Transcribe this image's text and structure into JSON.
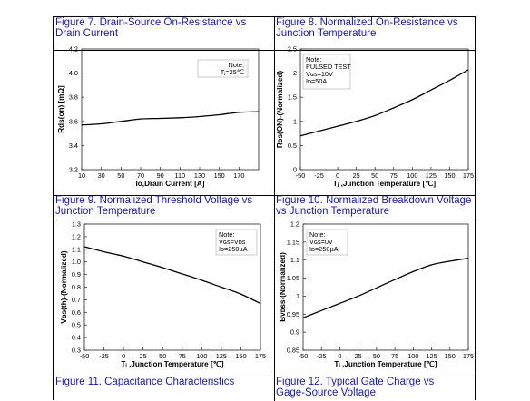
{
  "captions": {
    "fig7": "Figure 7. Drain-Source On-Resistance vs\nDrain Current",
    "fig8": "Figure 8. Normalized On-Resistance vs\nJunction Temperature",
    "fig9": "Figure 9. Normalized Threshold Voltage vs\nJunction Temperature",
    "fig10": "Figure 10. Normalized Breakdown Voltage\nvs Junction Temperature",
    "fig11": "Figure 11. Capacitance Characteristics",
    "fig12": "Figure 12. Typical Gate Charge vs\nGage-Source Voltage"
  },
  "chart_data": [
    {
      "type": "line",
      "figure": "Figure 7",
      "xlabel": "Io,Drain Current [A]",
      "ylabel": "Rds(on) [mΩ]",
      "xlim": [
        10,
        190
      ],
      "ylim": [
        3.2,
        4.2
      ],
      "xticks": [
        10,
        30,
        50,
        70,
        90,
        110,
        130,
        150,
        170
      ],
      "yticks": [
        3.2,
        3.4,
        3.6,
        3.8,
        4.0,
        4.2
      ],
      "ytick_labels": [
        "3.2",
        "3.4",
        "3.6",
        "3.8",
        "4.0",
        "4.2"
      ],
      "note": [
        "Note:",
        "Tⱼ=25℃"
      ],
      "x": [
        10,
        30,
        50,
        70,
        90,
        110,
        130,
        150,
        170,
        190
      ],
      "y": [
        3.57,
        3.58,
        3.6,
        3.62,
        3.625,
        3.63,
        3.64,
        3.655,
        3.675,
        3.68
      ]
    },
    {
      "type": "line",
      "figure": "Figure 8",
      "xlabel": "Tⱼ ,Junction Temperature [℃]",
      "ylabel": "Rᴅs(ON)-(Normalized)",
      "xlim": [
        -50,
        175
      ],
      "ylim": [
        0,
        2.5
      ],
      "xticks": [
        -50,
        -25,
        0,
        25,
        50,
        75,
        100,
        125,
        150,
        175
      ],
      "yticks": [
        0,
        0.5,
        1,
        1.5,
        2,
        2.5
      ],
      "ytick_labels": [
        "0",
        "0.5",
        "1",
        "1.5",
        "2",
        "2.5"
      ],
      "note": [
        "Note:",
        "PULSED TEST",
        "Vɢs=10V",
        "Iᴅ=50A"
      ],
      "x": [
        -50,
        -25,
        0,
        25,
        50,
        75,
        100,
        125,
        150,
        175
      ],
      "y": [
        0.7,
        0.8,
        0.9,
        1.0,
        1.12,
        1.28,
        1.45,
        1.65,
        1.85,
        2.07
      ]
    },
    {
      "type": "line",
      "figure": "Figure 9",
      "xlabel": "Tⱼ ,Junction Temperature [℃]",
      "ylabel": "Vɢs(th)-(Normalized)",
      "xlim": [
        -50,
        175
      ],
      "ylim": [
        0.3,
        1.3
      ],
      "xticks": [
        -50,
        -25,
        0,
        25,
        50,
        75,
        100,
        125,
        150,
        175
      ],
      "yticks": [
        0.3,
        0.4,
        0.5,
        0.6,
        0.7,
        0.8,
        0.9,
        1.0,
        1.1,
        1.2,
        1.3
      ],
      "ytick_labels": [
        "0.3",
        "0.4",
        "0.5",
        "0.6",
        "0.7",
        "0.8",
        "0.9",
        "1.0",
        "1.1",
        "1.2",
        "1.3"
      ],
      "note": [
        "Note:",
        "Vɢs=Vᴅs",
        "Iᴅ=250µA"
      ],
      "x": [
        -50,
        -25,
        0,
        25,
        50,
        75,
        100,
        125,
        150,
        175
      ],
      "y": [
        1.12,
        1.08,
        1.045,
        1.0,
        0.955,
        0.905,
        0.855,
        0.8,
        0.745,
        0.67
      ]
    },
    {
      "type": "line",
      "figure": "Figure 10",
      "xlabel": "Tⱼ ,Junction Temperature [℃]",
      "ylabel": "Bᴠᴅss-(Normalized)",
      "xlim": [
        -50,
        175
      ],
      "ylim": [
        0.85,
        1.2
      ],
      "xticks": [
        -50,
        -25,
        0,
        25,
        50,
        75,
        100,
        125,
        150,
        175
      ],
      "yticks": [
        0.85,
        0.9,
        0.95,
        1.0,
        1.05,
        1.1,
        1.15,
        1.2
      ],
      "ytick_labels": [
        "0.85",
        "0.9",
        "0.95",
        "1",
        "1.05",
        "1.1",
        "1.15",
        "1.2"
      ],
      "note": [
        "Note:",
        "Vɢs=0V",
        "Iᴅ=250µA"
      ],
      "x": [
        -50,
        -25,
        0,
        25,
        50,
        75,
        100,
        125,
        150,
        175
      ],
      "y": [
        0.94,
        0.96,
        0.98,
        1.0,
        1.023,
        1.046,
        1.068,
        1.087,
        1.097,
        1.105
      ]
    }
  ]
}
